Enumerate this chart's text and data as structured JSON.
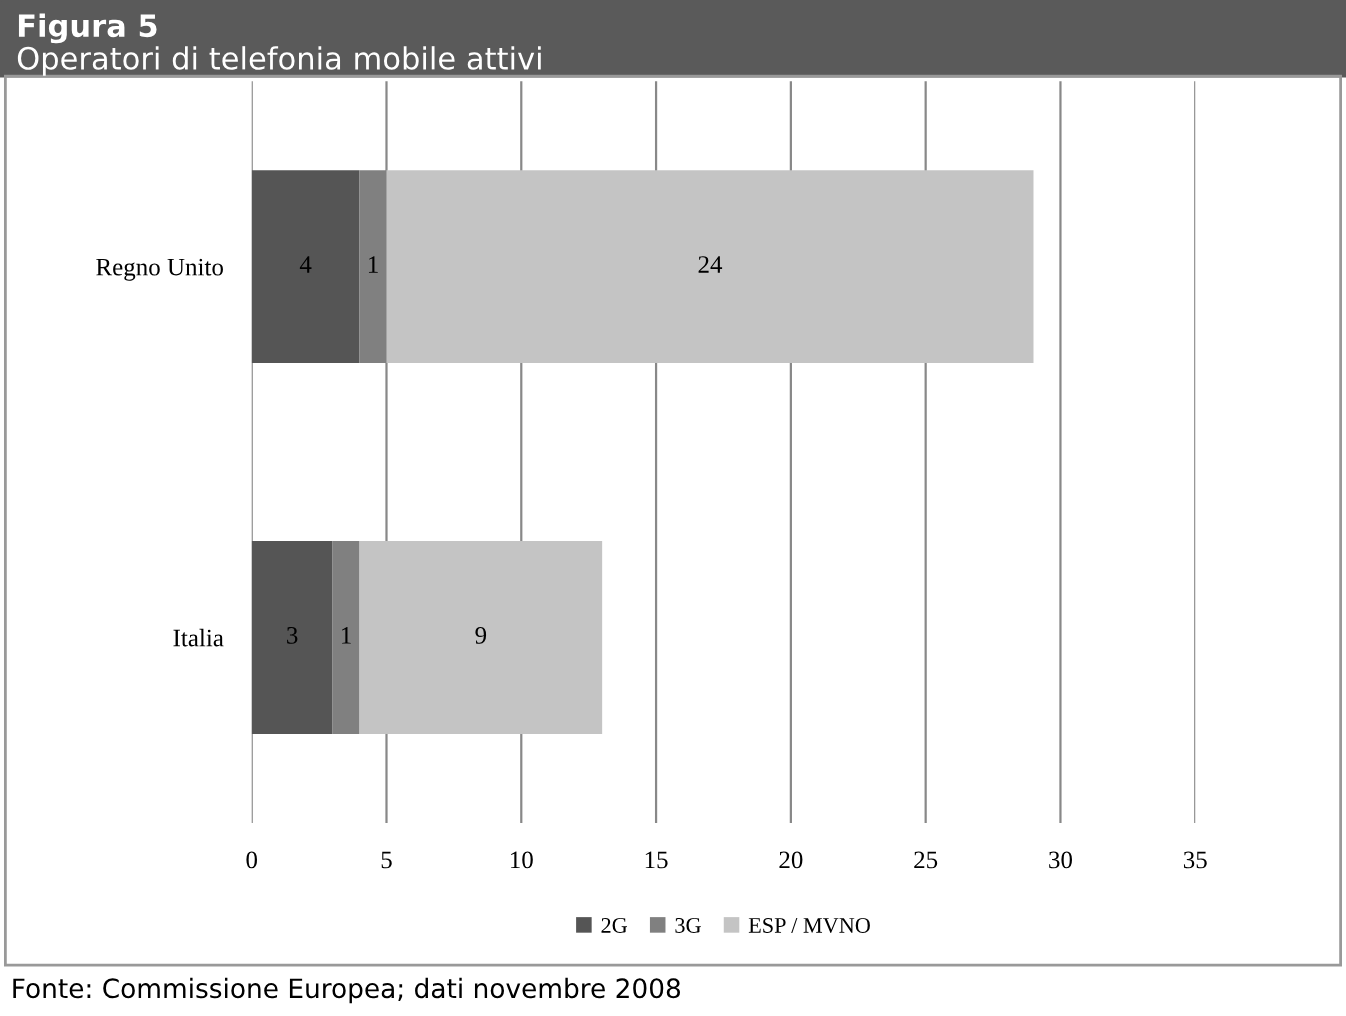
{
  "chart_data": {
    "type": "bar",
    "orientation": "horizontal",
    "stacked": true,
    "title": "Figura 5",
    "subtitle": "Operatori di telefonia mobile attivi",
    "categories": [
      "Regno Unito",
      "Italia"
    ],
    "series": [
      {
        "name": "2G",
        "color": "#555555",
        "values": [
          4,
          3
        ]
      },
      {
        "name": "3G",
        "color": "#808080",
        "values": [
          1,
          1
        ]
      },
      {
        "name": "ESP / MVNO",
        "color": "#c4c4c4",
        "values": [
          24,
          9
        ]
      }
    ],
    "xlim": [
      0,
      35
    ],
    "xticks": [
      0,
      5,
      10,
      15,
      20,
      25,
      30,
      35
    ],
    "grid": "x",
    "legend": "bottom",
    "data_labels": true,
    "annotations": [
      "Fonte: Commissione Europea; dati novembre 2008"
    ]
  }
}
